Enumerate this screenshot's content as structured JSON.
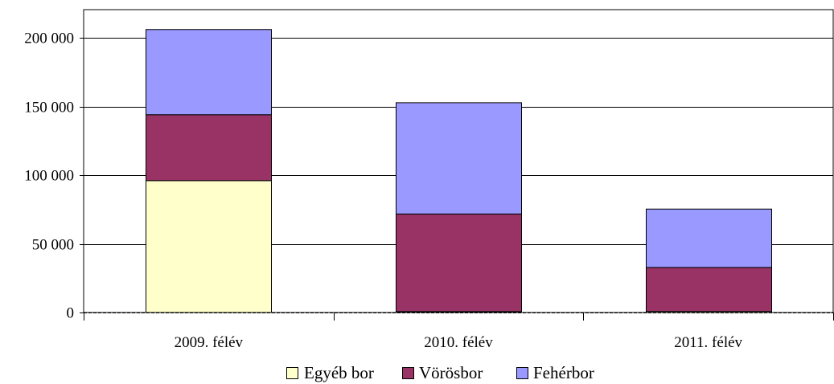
{
  "chart_data": {
    "type": "bar",
    "stacked": true,
    "categories": [
      "2009. félév",
      "2010. félév",
      "2011. félév"
    ],
    "series": [
      {
        "name": "Egyéb bor",
        "color": "#ffffcc",
        "values": [
          96000,
          700,
          800
        ]
      },
      {
        "name": "Vörösbor",
        "color": "#993366",
        "values": [
          48000,
          71000,
          32000
        ]
      },
      {
        "name": "Fehérbor",
        "color": "#9999ff",
        "values": [
          62000,
          81000,
          42500
        ]
      }
    ],
    "ylim": [
      0,
      220000
    ],
    "yticks": [
      0,
      50000,
      100000,
      150000,
      200000
    ],
    "ytick_labels": [
      "0",
      "50 000",
      "100 000",
      "150 000",
      "200 000"
    ],
    "grid": true,
    "legend_position": "bottom",
    "title": "",
    "xlabel": "",
    "ylabel": ""
  }
}
